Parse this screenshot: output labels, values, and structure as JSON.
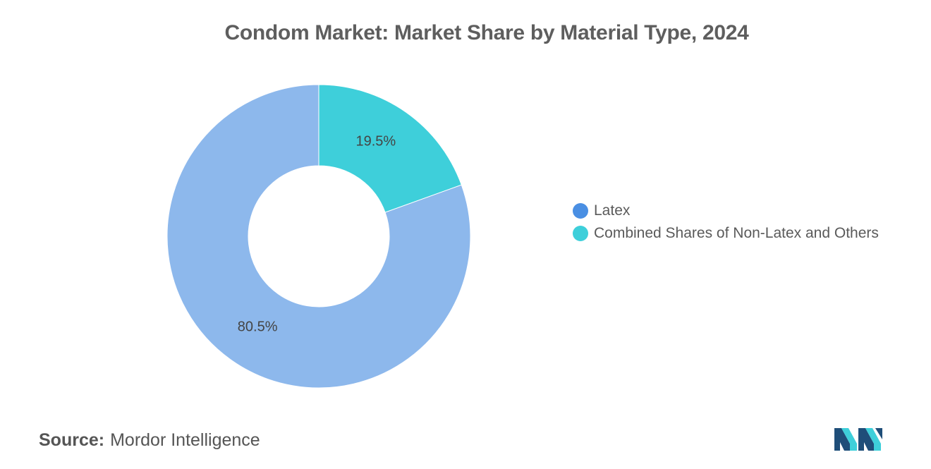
{
  "chart_data": {
    "type": "pie",
    "title": "Condom Market: Market Share by Material Type, 2024",
    "donut": true,
    "categories": [
      "Latex",
      "Combined Shares of Non-Latex and Others"
    ],
    "values": [
      80.5,
      19.5
    ],
    "data_labels": [
      "80.5%",
      "19.5%"
    ],
    "slice_colors": [
      "#8db8ec",
      "#3ecfda"
    ],
    "legend_colors": [
      "#4a8fe3",
      "#3ecfda"
    ],
    "legend_position": "right"
  },
  "source": {
    "label": "Source:",
    "value": "Mordor Intelligence"
  },
  "logo": {
    "icon": "mordor-intelligence-logo-icon",
    "colors": [
      "#1f4e79",
      "#3ecfda"
    ]
  }
}
